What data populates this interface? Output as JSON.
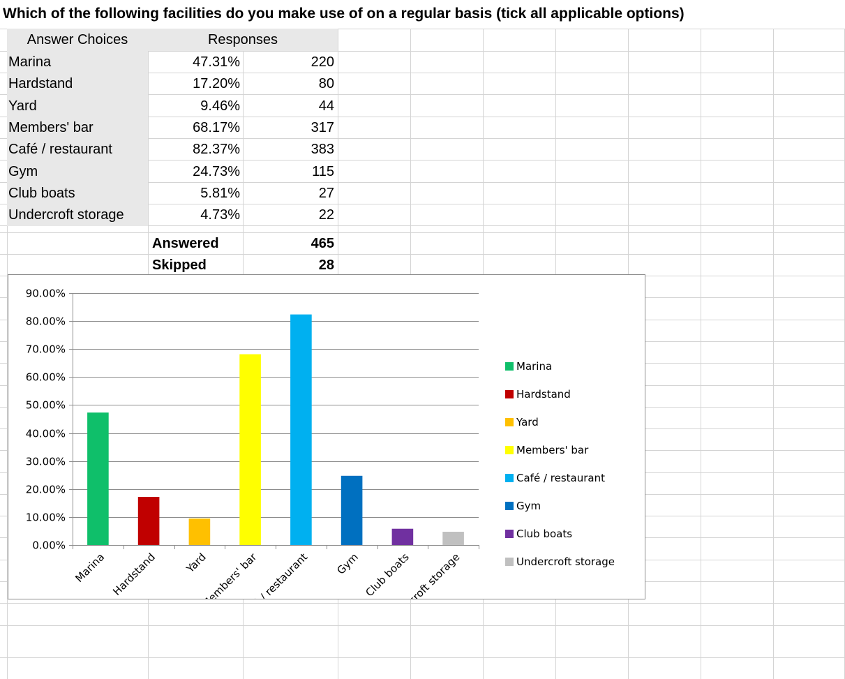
{
  "title": "Which of the following facilities do you make use of on a regular basis (tick all applicable options)",
  "table": {
    "header_choices": "Answer Choices",
    "header_responses": "Responses",
    "rows": [
      {
        "label": "Marina",
        "pct": "47.31%",
        "count": "220"
      },
      {
        "label": "Hardstand",
        "pct": "17.20%",
        "count": "80"
      },
      {
        "label": "Yard",
        "pct": "9.46%",
        "count": "44"
      },
      {
        "label": "Members' bar",
        "pct": "68.17%",
        "count": "317"
      },
      {
        "label": "Café / restaurant",
        "pct": "82.37%",
        "count": "383"
      },
      {
        "label": "Gym",
        "pct": "24.73%",
        "count": "115"
      },
      {
        "label": "Club boats",
        "pct": "5.81%",
        "count": "27"
      },
      {
        "label": "Undercroft storage",
        "pct": "4.73%",
        "count": "22"
      }
    ],
    "answered_label": "Answered",
    "answered_value": "465",
    "skipped_label": "Skipped",
    "skipped_value": "28"
  },
  "chart_data": {
    "type": "bar",
    "categories": [
      "Marina",
      "Hardstand",
      "Yard",
      "Members' bar",
      "Café / restaurant",
      "Gym",
      "Club boats",
      "Undercroft storage"
    ],
    "values": [
      47.31,
      17.2,
      9.46,
      68.17,
      82.37,
      24.73,
      5.81,
      4.73
    ],
    "colors": [
      "#0fbf6a",
      "#c00000",
      "#ffc000",
      "#ffff00",
      "#00b0f0",
      "#0070c0",
      "#7030a0",
      "#c0c0c0"
    ],
    "ylim": [
      0,
      90
    ],
    "yticks": [
      0,
      10,
      20,
      30,
      40,
      50,
      60,
      70,
      80,
      90
    ],
    "ytick_labels": [
      "0.00%",
      "10.00%",
      "20.00%",
      "30.00%",
      "40.00%",
      "50.00%",
      "60.00%",
      "70.00%",
      "80.00%",
      "90.00%"
    ],
    "grid": true,
    "legend": "right",
    "title": "",
    "xlabel": "",
    "ylabel": ""
  }
}
